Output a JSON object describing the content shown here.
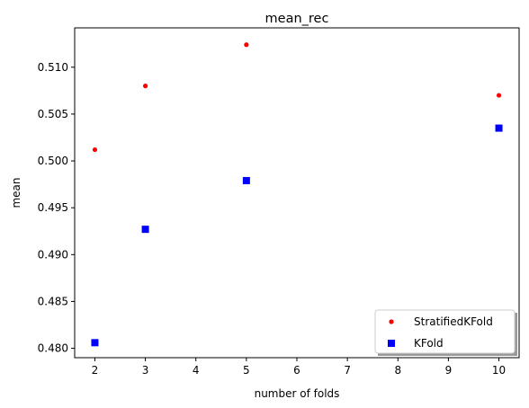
{
  "chart_data": {
    "type": "scatter",
    "title": "mean_rec",
    "xlabel": "number of folds",
    "ylabel": "mean",
    "xlim": [
      1.6,
      10.4
    ],
    "ylim": [
      0.479,
      0.5142
    ],
    "xticks": [
      2,
      3,
      4,
      5,
      6,
      7,
      8,
      9,
      10
    ],
    "yticks": [
      0.48,
      0.485,
      0.49,
      0.495,
      0.5,
      0.505,
      0.51
    ],
    "ytick_labels": [
      "0.480",
      "0.485",
      "0.490",
      "0.495",
      "0.500",
      "0.505",
      "0.510"
    ],
    "grid": false,
    "legend_position": "lower-right",
    "series": [
      {
        "name": "StratifiedKFold",
        "marker": "circle",
        "color": "#ff0000",
        "x": [
          2,
          3,
          5,
          10
        ],
        "y": [
          0.5012,
          0.508,
          0.5124,
          0.507
        ]
      },
      {
        "name": "KFold",
        "marker": "square",
        "color": "#0000ff",
        "x": [
          2,
          3,
          5,
          10
        ],
        "y": [
          0.4806,
          0.4927,
          0.4979,
          0.5035
        ]
      }
    ]
  }
}
